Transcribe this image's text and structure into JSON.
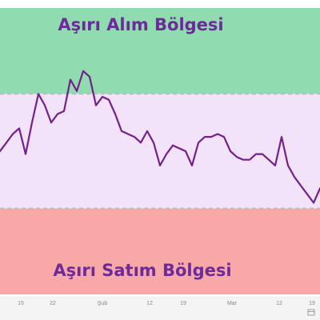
{
  "colors": {
    "overbought_zone": "#90dcb0",
    "neutral_zone": "#f2e3fb",
    "oversold_zone": "#f8a9a7",
    "line": "#74208c",
    "zone_label_text": "#6d2a9a",
    "threshold_dash": "#bdbdbd",
    "axis_text": "#888888",
    "footer_bg": "#f4f4f4"
  },
  "zones": {
    "overbought_label": "Aşırı Alım Bölgesi",
    "oversold_label": "Aşırı Satım Bölgesi"
  },
  "footer": {
    "calendar_icon": "calendar-icon"
  },
  "chart_data": {
    "type": "line",
    "title": "",
    "xlabel": "",
    "ylabel": "",
    "ylim": [
      0,
      100
    ],
    "x_tick_labels": [
      "15",
      "22",
      "Şub",
      "12",
      "19",
      "Mar",
      "12",
      "19"
    ],
    "bands": [
      {
        "name": "Aşırı Alım Bölgesi",
        "from": 70,
        "to": 100
      },
      {
        "name": "Aşırı Satım Bölgesi",
        "from": 0,
        "to": 30
      }
    ],
    "grid": false,
    "series": [
      {
        "values": [
          50,
          53,
          56,
          58,
          49,
          60,
          70,
          66,
          60,
          63,
          64,
          75,
          71,
          78,
          76,
          66,
          69,
          68,
          63,
          57,
          56,
          55,
          53,
          57,
          53,
          45,
          49,
          52,
          51,
          50,
          45,
          53,
          55,
          55,
          56,
          55,
          50,
          48,
          47,
          47,
          49,
          49,
          47,
          45,
          55,
          45,
          41,
          38,
          35,
          32,
          37
        ]
      }
    ]
  }
}
